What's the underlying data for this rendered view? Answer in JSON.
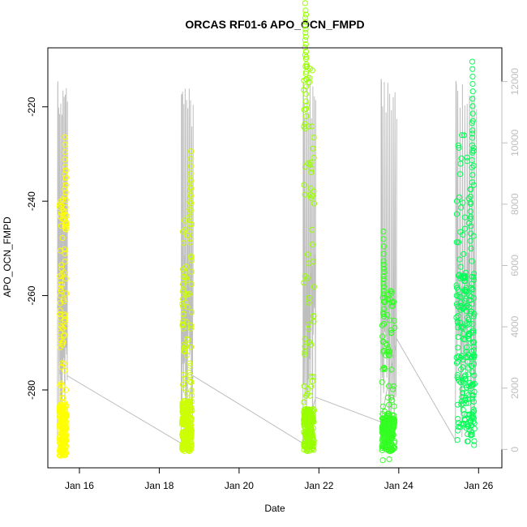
{
  "chart_data": {
    "type": "scatter",
    "title": "ORCAS RF01-6 APO_OCN_FMPD",
    "xlabel": "Date",
    "ylabel": "APO_OCN_FMPD",
    "x_ticks": [
      "Jan 16",
      "Jan 18",
      "Jan 20",
      "Jan 22",
      "Jan 24",
      "Jan 26"
    ],
    "x_tick_days": [
      16,
      18,
      20,
      22,
      24,
      26
    ],
    "xlim": [
      "2016-01-15 05:00",
      "2016-01-26 14:00"
    ],
    "y_ticks": [
      "-220",
      "-240",
      "-260",
      "-280"
    ],
    "y_tick_values": [
      -220,
      -240,
      -260,
      -280
    ],
    "ylim": [
      -296.5,
      -207.5
    ],
    "y2_ticks": [
      "0",
      "2000",
      "4000",
      "6000",
      "8000",
      "10000",
      "12000"
    ],
    "y2_tick_values": [
      0,
      2000,
      4000,
      6000,
      8000,
      10000,
      12000
    ],
    "y2lim": [
      -600,
      13100
    ],
    "series": [
      {
        "color": "#ffff00",
        "day_start": 15.5,
        "day_end": 15.68,
        "low": -294,
        "high": -239,
        "dense_low": -294,
        "dense_high": -283,
        "peaks": [
          {
            "day": 15.64,
            "value": -239
          },
          {
            "day": 15.66,
            "value": -246
          },
          {
            "day": 15.52,
            "value": -271
          }
        ]
      },
      {
        "color": "#ccff00",
        "day_start": 18.57,
        "day_end": 18.82,
        "low": -293,
        "high": -242,
        "dense_low": -293,
        "dense_high": -282,
        "peaks": [
          {
            "day": 18.79,
            "value": -242
          },
          {
            "day": 18.77,
            "value": -248
          },
          {
            "day": 18.6,
            "value": -267
          }
        ]
      },
      {
        "color": "#99ff00",
        "day_start": 21.62,
        "day_end": 21.88,
        "low": -294,
        "high": -209,
        "dense_low": -293,
        "dense_high": -284,
        "peaks": [
          {
            "day": 21.66,
            "value": -209
          },
          {
            "day": 21.67,
            "value": -213
          },
          {
            "day": 21.68,
            "value": -222
          }
        ]
      },
      {
        "color": "#33ff22",
        "day_start": 23.58,
        "day_end": 23.9,
        "low": -295,
        "high": -259,
        "dense_low": -293,
        "dense_high": -285,
        "peaks": [
          {
            "day": 23.62,
            "value": -259
          },
          {
            "day": 23.63,
            "value": -266
          }
        ]
      },
      {
        "color": "#00ff55",
        "day_start": 25.44,
        "day_end": 25.9,
        "low": -292,
        "high": -223,
        "dense_low": -291,
        "dense_high": -255,
        "peaks": [
          {
            "day": 25.85,
            "value": -223
          },
          {
            "day": 25.84,
            "value": -236
          },
          {
            "day": 25.8,
            "value": -250
          }
        ]
      }
    ],
    "secondary_series": {
      "axis": "right",
      "color": "#bebebe",
      "flights": [
        {
          "day_start": 15.45,
          "day_end": 15.7,
          "max": 12100
        },
        {
          "day_start": 18.55,
          "day_end": 18.85,
          "max": 11800
        },
        {
          "day_start": 21.6,
          "day_end": 21.92,
          "max": 12200
        },
        {
          "day_start": 23.55,
          "day_end": 23.95,
          "max": 12150
        },
        {
          "day_start": 25.42,
          "day_end": 25.95,
          "max": 12100
        }
      ],
      "transit_points": [
        {
          "day": 15.7,
          "value": 2400
        },
        {
          "day": 18.55,
          "value": 200
        },
        {
          "day": 18.85,
          "value": 2400
        },
        {
          "day": 21.6,
          "value": 200
        },
        {
          "day": 21.92,
          "value": 1700
        },
        {
          "day": 23.55,
          "value": 900
        },
        {
          "day": 23.95,
          "value": 3600
        },
        {
          "day": 25.42,
          "value": 300
        }
      ]
    },
    "grid": false,
    "legend": "none"
  }
}
